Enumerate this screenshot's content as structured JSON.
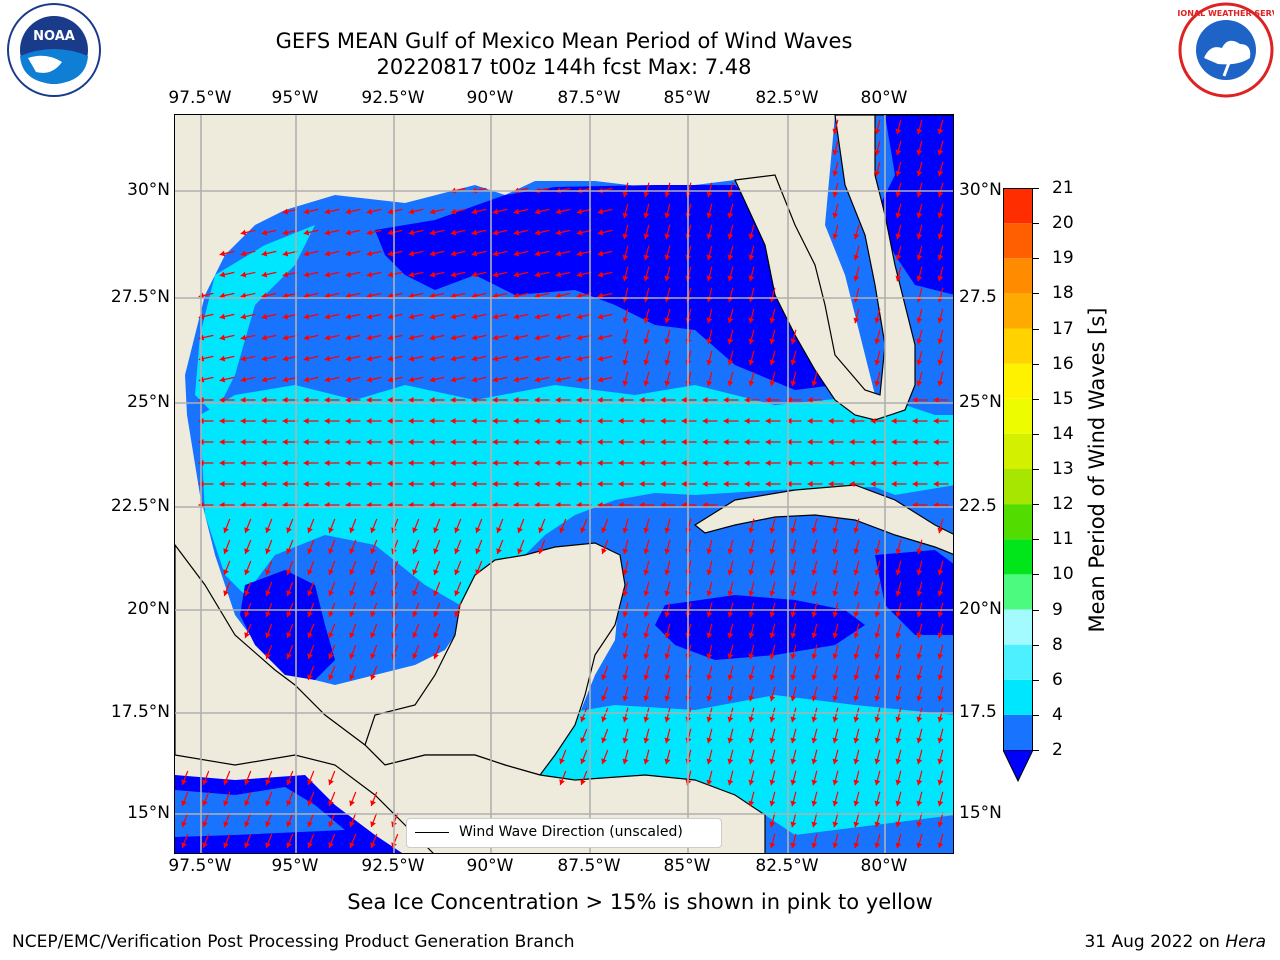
{
  "title": {
    "line1": "GEFS MEAN Gulf of Mexico Mean Period of Wind Waves",
    "line2": "20220817 t00z 144h fcst   Max: 7.48"
  },
  "map": {
    "lon_labels": [
      "97.5°W",
      "95°W",
      "92.5°W",
      "90°W",
      "87.5°W",
      "85°W",
      "82.5°W",
      "80°W"
    ],
    "lat_labels_left": [
      "30°N",
      "27.5°N",
      "25°N",
      "22.5°N",
      "20°N",
      "17.5°N",
      "15°N"
    ],
    "lat_labels_right": [
      "30°N",
      "27.5",
      "25°N",
      "22.5",
      "20°N",
      "17.5",
      "15°N"
    ],
    "land_color": "#efebdc",
    "arrow_color": "#ff0000"
  },
  "legend": {
    "label": "Wind Wave Direction (unscaled)"
  },
  "colorbar": {
    "label": "Mean Period of Wind Waves [s]",
    "ticks": [
      "2",
      "4",
      "6",
      "8",
      "9",
      "10",
      "11",
      "12",
      "13",
      "14",
      "15",
      "16",
      "17",
      "18",
      "19",
      "20",
      "21"
    ],
    "colors": [
      "#1873ff",
      "#00e6ff",
      "#4df0ff",
      "#a3fbff",
      "#4dfa80",
      "#00e61a",
      "#52dc00",
      "#a6e600",
      "#d2f000",
      "#eefc00",
      "#fff200",
      "#ffd200",
      "#ffaa00",
      "#ff8c00",
      "#ff5f00",
      "#ff2d00"
    ],
    "extend_color": "#0000ff"
  },
  "footnote": "Sea Ice Concentration > 15% is shown in pink to yellow",
  "credit": "NCEP/EMC/Verification Post Processing Product Generation Branch",
  "rundate": {
    "date": "31 Aug 2022 on ",
    "host": "Hera"
  },
  "logos": {
    "left_text": "NOAA",
    "right_text": "NATIONAL WEATHER SERVICE"
  }
}
